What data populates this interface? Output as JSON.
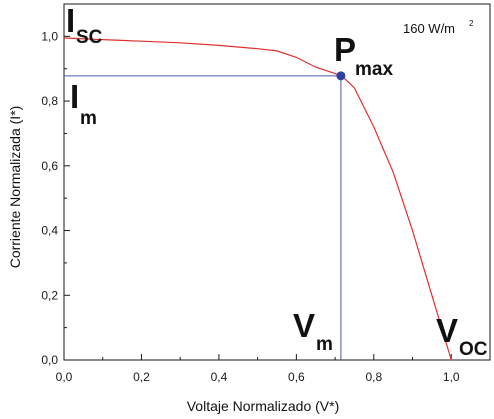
{
  "chart_data": {
    "type": "line",
    "xlabel": "Voltaje Normalizado (V*)",
    "ylabel": "Corriente Normalizada (I*)",
    "xlim": [
      0.0,
      1.1
    ],
    "ylim": [
      0.0,
      1.1
    ],
    "xticks": [
      0.0,
      0.2,
      0.4,
      0.6,
      0.8,
      1.0
    ],
    "yticks": [
      0.0,
      0.2,
      0.4,
      0.6,
      0.8,
      1.0
    ],
    "xtick_labels": [
      "0,0",
      "0,2",
      "0,4",
      "0,6",
      "0,8",
      "1,0"
    ],
    "ytick_labels": [
      "0,0",
      "0,2",
      "0,4",
      "0,6",
      "0,8",
      "1,0"
    ],
    "grid": false,
    "series": [
      {
        "x": [
          0.0,
          0.1,
          0.2,
          0.3,
          0.4,
          0.5,
          0.55,
          0.6,
          0.65,
          0.7,
          0.72,
          0.75,
          0.8,
          0.85,
          0.9,
          0.95,
          1.0
        ],
        "y": [
          0.995,
          0.99,
          0.985,
          0.98,
          0.972,
          0.962,
          0.955,
          0.935,
          0.905,
          0.885,
          0.875,
          0.84,
          0.72,
          0.58,
          0.4,
          0.2,
          0.0
        ],
        "color": "#e03030"
      }
    ],
    "max_power_point": {
      "x": 0.715,
      "y": 0.878,
      "color": "#3040a0"
    },
    "reference_lines_color": "#4a5aa0",
    "annotations": {
      "isc": {
        "main": "I",
        "sub": "SC"
      },
      "im": {
        "main": "I",
        "sub": "m"
      },
      "pmax": {
        "main": "P",
        "sub": "max"
      },
      "vm": {
        "main": "V",
        "sub": "m"
      },
      "voc": {
        "main": "V",
        "sub": "OC"
      },
      "irradiance": {
        "text": "160 W/m",
        "sup": "2"
      }
    }
  }
}
